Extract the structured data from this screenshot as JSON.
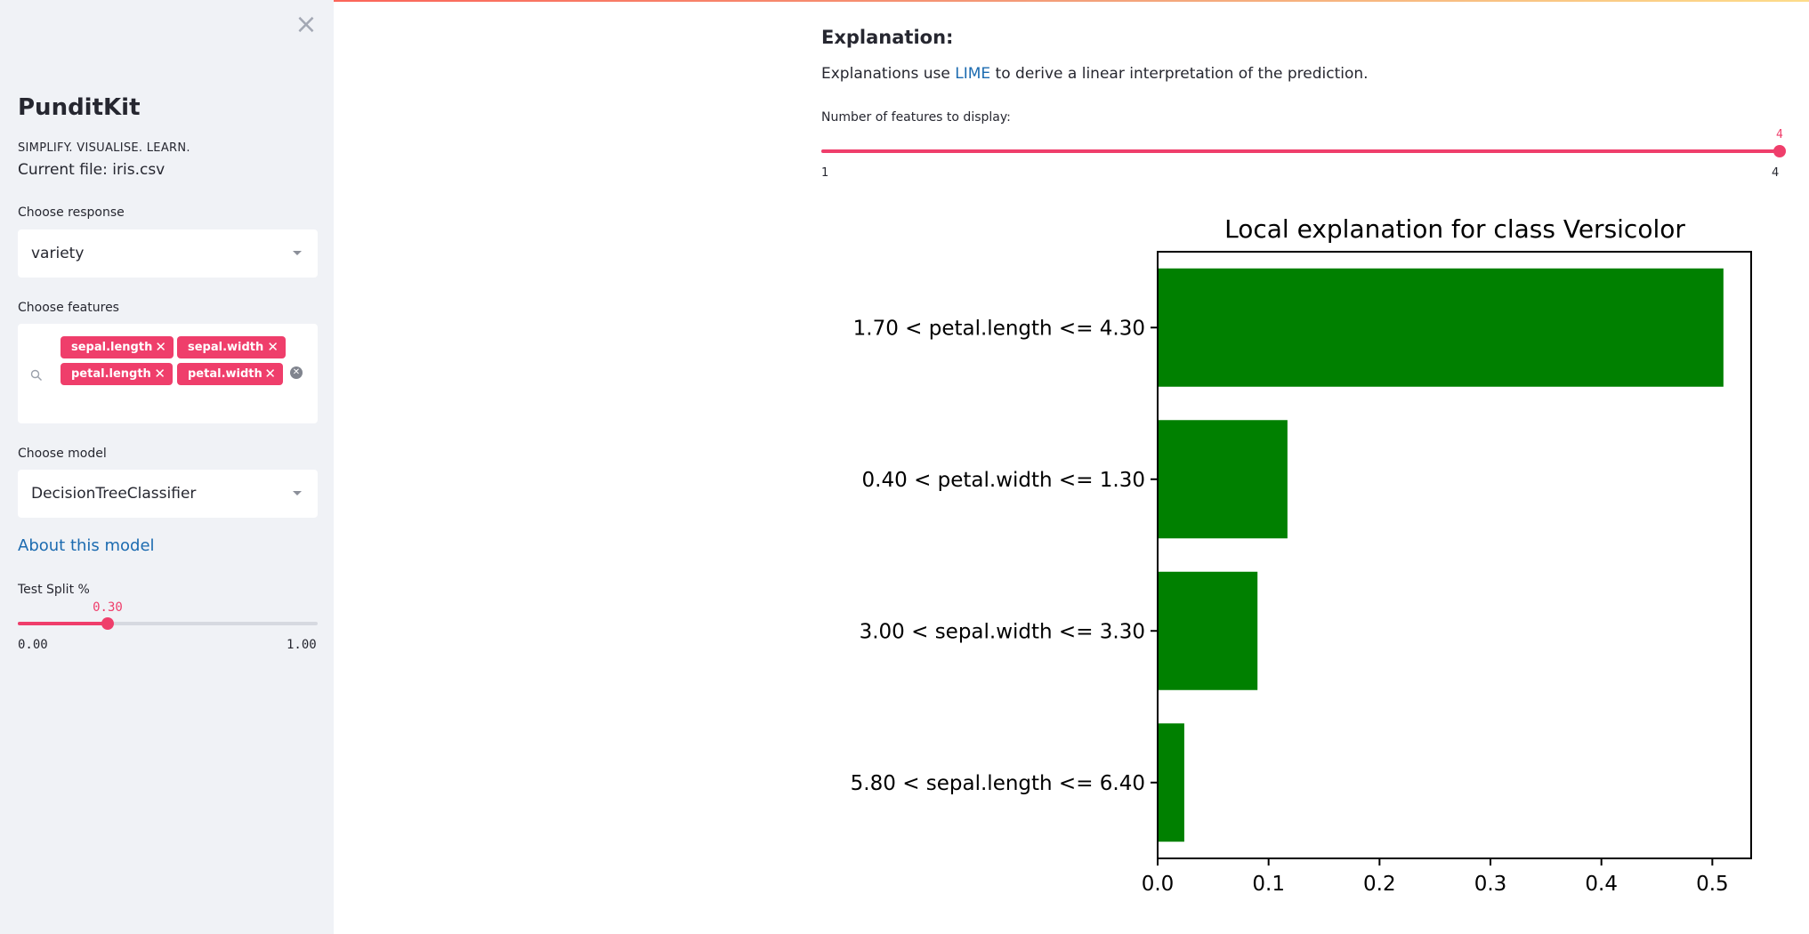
{
  "sidebar": {
    "close_icon": "close-icon",
    "brand": "PunditKit",
    "tagline": "SIMPLIFY. VISUALISE. LEARN.",
    "current_file": "Current file: iris.csv",
    "response": {
      "label": "Choose response",
      "value": "variety"
    },
    "features": {
      "label": "Choose features",
      "selected": [
        "sepal.length",
        "sepal.width",
        "petal.length",
        "petal.width"
      ]
    },
    "model": {
      "label": "Choose model",
      "value": "DecisionTreeClassifier"
    },
    "about_link": "About this model",
    "test_split": {
      "label": "Test Split %",
      "value": "0.30",
      "min": "0.00",
      "max": "1.00",
      "fraction": 0.3
    }
  },
  "main": {
    "title": "Explanation:",
    "text_before": "Explanations use ",
    "link": "LIME",
    "text_after": " to derive a linear interpretation of the prediction.",
    "num_features": {
      "label": "Number of features to display:",
      "value": "4",
      "min": "1",
      "max": "4",
      "fraction": 1.0
    }
  },
  "colors": {
    "accent": "#ef3e6b",
    "bar": "#008000",
    "link": "#1c6bb0"
  },
  "chart_data": {
    "type": "bar",
    "orientation": "horizontal",
    "title": "Local explanation for class Versicolor",
    "categories": [
      "1.70 < petal.length <= 4.30",
      "0.40 < petal.width <= 1.30",
      "3.00 < sepal.width <= 3.30",
      "5.80 < sepal.length <= 6.40"
    ],
    "values": [
      0.51,
      0.117,
      0.09,
      0.024
    ],
    "xlim": [
      0,
      0.535
    ],
    "xticks": [
      "0.0",
      "0.1",
      "0.2",
      "0.3",
      "0.4",
      "0.5"
    ],
    "grid": false
  }
}
